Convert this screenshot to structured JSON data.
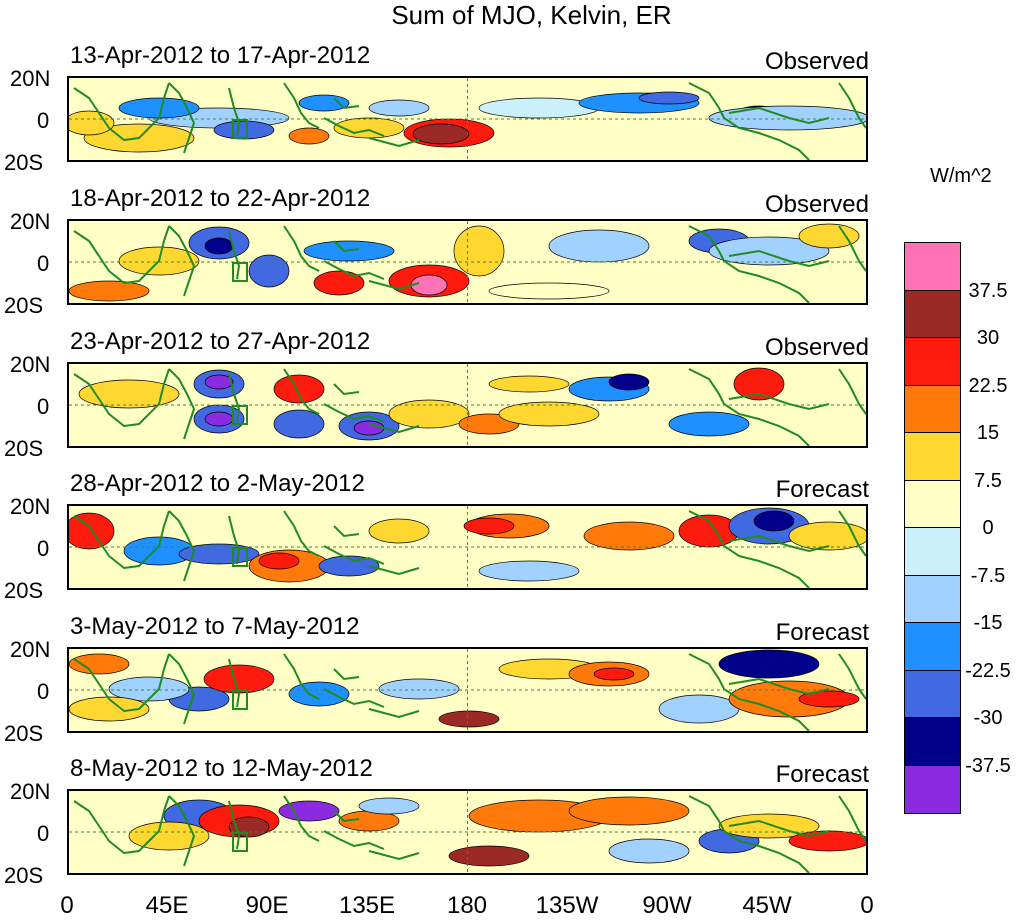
{
  "title": "Sum of MJO, Kelvin, ER",
  "panels": [
    {
      "date": "13-Apr-2012 to 17-Apr-2012",
      "kind": "Observed"
    },
    {
      "date": "18-Apr-2012 to 22-Apr-2012",
      "kind": "Observed"
    },
    {
      "date": "23-Apr-2012 to 27-Apr-2012",
      "kind": "Observed"
    },
    {
      "date": "28-Apr-2012 to 2-May-2012",
      "kind": "Forecast"
    },
    {
      "date": "3-May-2012 to 7-May-2012",
      "kind": "Forecast"
    },
    {
      "date": "8-May-2012 to 12-May-2012",
      "kind": "Forecast"
    }
  ],
  "lat_labels": [
    "20N",
    "0",
    "20S"
  ],
  "lon_labels": [
    "0",
    "45E",
    "90E",
    "135E",
    "180",
    "135W",
    "90W",
    "45W",
    "0"
  ],
  "colorbar": {
    "units": "W/m^2",
    "colors": [
      "#ff72b6",
      "#9b2a27",
      "#ff1a0e",
      "#ff7a0a",
      "#ffd731",
      "#ffffc6",
      "#c9f0fb",
      "#a1d1fe",
      "#1e90ff",
      "#4169e1",
      "#00008b",
      "#8a2be2"
    ],
    "labels": [
      "37.5",
      "30",
      "22.5",
      "15",
      "7.5",
      "0",
      "-7.5",
      "-15",
      "-22.5",
      "-30",
      "-37.5"
    ]
  },
  "map_colors": {
    "coast": "#1e8c22",
    "gridline": "#3a8a3a"
  }
}
